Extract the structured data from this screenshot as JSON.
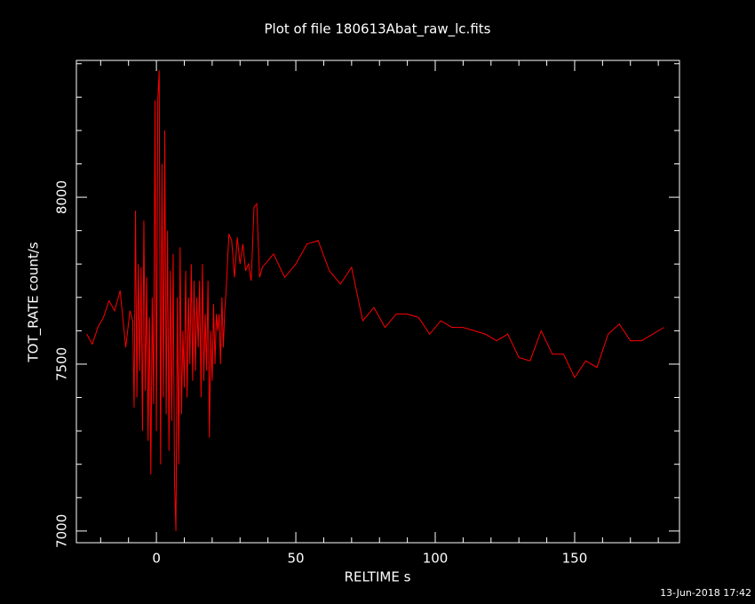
{
  "chart_data": {
    "type": "line",
    "title": "Plot of file 180613Abat_raw_lc.fits",
    "x_label": "RELTIME  s",
    "y_label": "TOT_RATE  count/s",
    "timestamp": "13-Jun-2018 17:42",
    "xlim": [
      -28.7,
      187.6
    ],
    "ylim": [
      6965,
      8410
    ],
    "xticks": [
      0,
      50,
      100,
      150
    ],
    "yticks": [
      7000,
      7500,
      8000
    ],
    "xminorticks": [
      -20,
      -10,
      10,
      20,
      30,
      40,
      60,
      70,
      80,
      90,
      110,
      120,
      130,
      140,
      160,
      170,
      180
    ],
    "yminorticks": [
      7100,
      7200,
      7300,
      7400,
      7600,
      7700,
      7800,
      7900,
      8100,
      8200,
      8300,
      8400
    ],
    "series": [
      {
        "color": "#ff0000",
        "x": [
          -25,
          -23,
          -21,
          -19,
          -17,
          -15,
          -13,
          -11,
          -9.5,
          -8.5,
          -8,
          -7.5,
          -7,
          -6.5,
          -6,
          -5.5,
          -5,
          -4.5,
          -4,
          -3.5,
          -3,
          -2.5,
          -2,
          -1.5,
          -1,
          -0.5,
          0,
          0.5,
          1,
          1.5,
          2,
          2.5,
          3,
          3.5,
          4,
          4.5,
          5,
          5.5,
          6,
          6.5,
          7,
          7.5,
          8,
          8.5,
          9,
          9.5,
          10,
          10.5,
          11,
          11.5,
          12,
          12.5,
          13,
          13.5,
          14,
          14.5,
          15,
          15.5,
          16,
          16.5,
          17,
          17.5,
          18,
          18.5,
          19,
          19.5,
          20,
          20.5,
          21,
          21.5,
          22,
          22.5,
          23,
          23.5,
          24,
          24.5,
          25,
          26,
          27,
          28,
          29,
          30,
          31,
          32,
          33,
          34,
          35,
          36,
          37,
          38,
          42,
          46,
          50,
          54,
          58,
          62,
          66,
          70,
          74,
          78,
          82,
          86,
          90,
          94,
          98,
          102,
          106,
          110,
          114,
          118,
          122,
          126,
          130,
          134,
          138,
          142,
          146,
          150,
          154,
          158,
          162,
          166,
          170,
          174,
          178,
          182
        ],
        "values": [
          7590,
          7560,
          7610,
          7640,
          7690,
          7660,
          7720,
          7550,
          7660,
          7630,
          7370,
          7960,
          7400,
          7800,
          7480,
          7790,
          7300,
          7930,
          7420,
          7760,
          7270,
          7640,
          7170,
          7700,
          7380,
          8290,
          7300,
          8290,
          8380,
          7200,
          8100,
          7400,
          8200,
          7350,
          7900,
          7240,
          7780,
          7330,
          7830,
          7150,
          7000,
          7700,
          7200,
          7850,
          7350,
          7600,
          7430,
          7780,
          7400,
          7700,
          7500,
          7800,
          7450,
          7750,
          7480,
          7700,
          7550,
          7750,
          7400,
          7800,
          7450,
          7650,
          7480,
          7750,
          7280,
          7600,
          7450,
          7680,
          7500,
          7650,
          7600,
          7650,
          7500,
          7700,
          7550,
          7660,
          7720,
          7890,
          7870,
          7760,
          7880,
          7800,
          7860,
          7780,
          7800,
          7750,
          7970,
          7980,
          7760,
          7790,
          7830,
          7760,
          7800,
          7860,
          7870,
          7780,
          7740,
          7790,
          7630,
          7670,
          7610,
          7650,
          7650,
          7640,
          7590,
          7630,
          7610,
          7610,
          7600,
          7590,
          7570,
          7590,
          7520,
          7510,
          7600,
          7530,
          7530,
          7460,
          7510,
          7490,
          7590,
          7620,
          7570,
          7570,
          7590,
          7610
        ]
      }
    ]
  }
}
